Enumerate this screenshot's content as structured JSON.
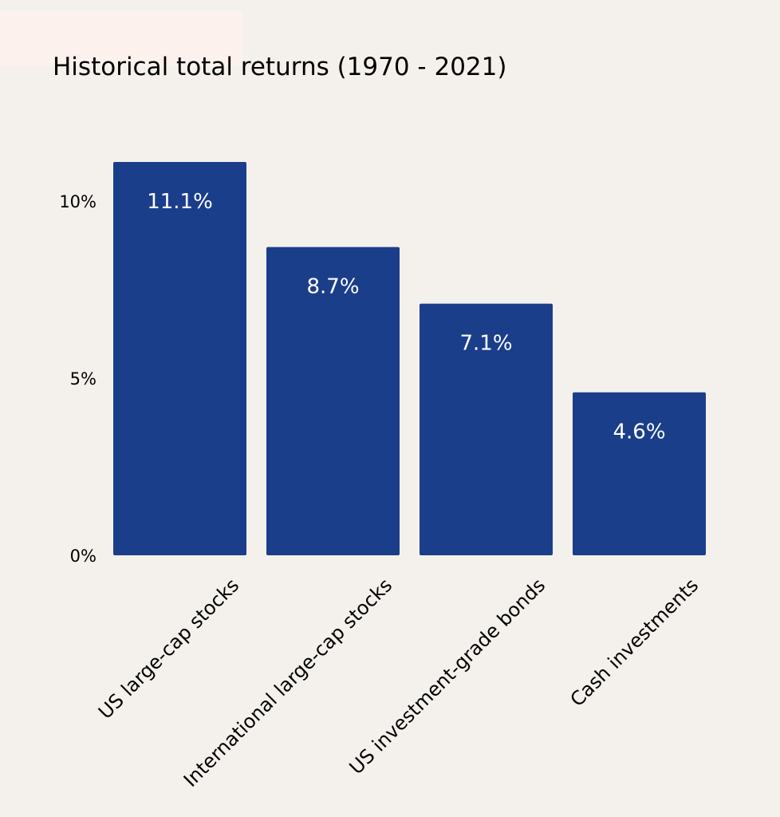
{
  "chart_data": {
    "type": "bar",
    "title": "Historical total returns (1970 - 2021)",
    "categories": [
      "US large-cap stocks",
      "International large-cap stocks",
      "US investment-grade bonds",
      "Cash investments"
    ],
    "values": [
      11.1,
      8.7,
      7.1,
      4.6
    ],
    "data_labels": [
      "11.1%",
      "8.7%",
      "7.1%",
      "4.6%"
    ],
    "y_ticks": [
      {
        "value": 0,
        "label": "0%"
      },
      {
        "value": 5,
        "label": "5%"
      },
      {
        "value": 10,
        "label": "10%"
      }
    ],
    "xlabel": "",
    "ylabel": "",
    "ylim": [
      0,
      11.1
    ],
    "grid": false,
    "legend": "none",
    "colors": {
      "bar": "#1b3e8b",
      "background": "#f4f1ec",
      "accent_block": "#fdf1ed",
      "bar_label": "#ffffff",
      "text": "#000000"
    }
  }
}
